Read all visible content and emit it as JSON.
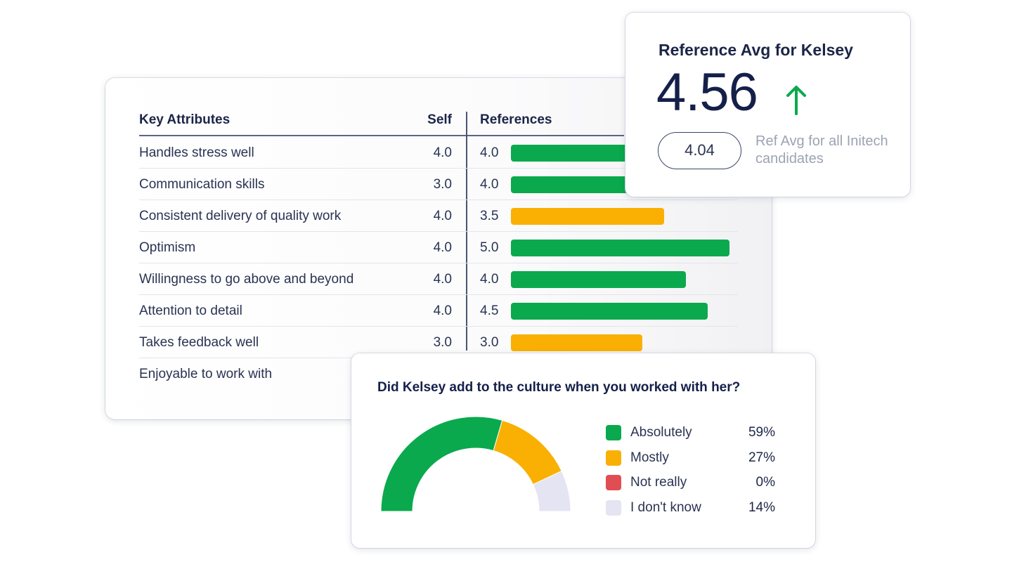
{
  "colors": {
    "green": "#0aa94d",
    "amber": "#f9b003",
    "red": "#e04e53",
    "lavender": "#e5e4f3",
    "navy": "#15204a"
  },
  "attributes_table": {
    "headers": {
      "attribute": "Key Attributes",
      "self": "Self",
      "references": "References"
    },
    "max_score": 5.0,
    "rows": [
      {
        "label": "Handles stress well",
        "self": "4.0",
        "ref": "4.0",
        "ref_value": 4.0,
        "bar_color": "green"
      },
      {
        "label": "Communication skills",
        "self": "3.0",
        "ref": "4.0",
        "ref_value": 4.0,
        "bar_color": "green"
      },
      {
        "label": "Consistent delivery of quality work",
        "self": "4.0",
        "ref": "3.5",
        "ref_value": 3.5,
        "bar_color": "amber"
      },
      {
        "label": "Optimism",
        "self": "4.0",
        "ref": "5.0",
        "ref_value": 5.0,
        "bar_color": "green"
      },
      {
        "label": "Willingness to go above and beyond",
        "self": "4.0",
        "ref": "4.0",
        "ref_value": 4.0,
        "bar_color": "green"
      },
      {
        "label": "Attention to detail",
        "self": "4.0",
        "ref": "4.5",
        "ref_value": 4.5,
        "bar_color": "green"
      },
      {
        "label": "Takes feedback well",
        "self": "3.0",
        "ref": "3.0",
        "ref_value": 3.0,
        "bar_color": "amber"
      },
      {
        "label": "Enjoyable to work with"
      }
    ]
  },
  "reference_avg": {
    "title": "Reference Avg for Kelsey",
    "value": "4.56",
    "trend_icon": "arrow-up-icon",
    "company_avg": "4.04",
    "company_avg_label": "Ref Avg for all Initech candidates"
  },
  "culture": {
    "question": "Did Kelsey add to the culture when you worked with her?",
    "chart_data": {
      "type": "pie",
      "style": "semicircle-gauge",
      "categories": [
        "Absolutely",
        "Mostly",
        "Not really",
        "I don't know"
      ],
      "values": [
        59,
        27,
        0,
        14
      ],
      "value_labels": [
        "59%",
        "27%",
        "0%",
        "14%"
      ],
      "colors": [
        "#0aa94d",
        "#f9b003",
        "#e04e53",
        "#e5e4f3"
      ],
      "legend": "right"
    }
  }
}
